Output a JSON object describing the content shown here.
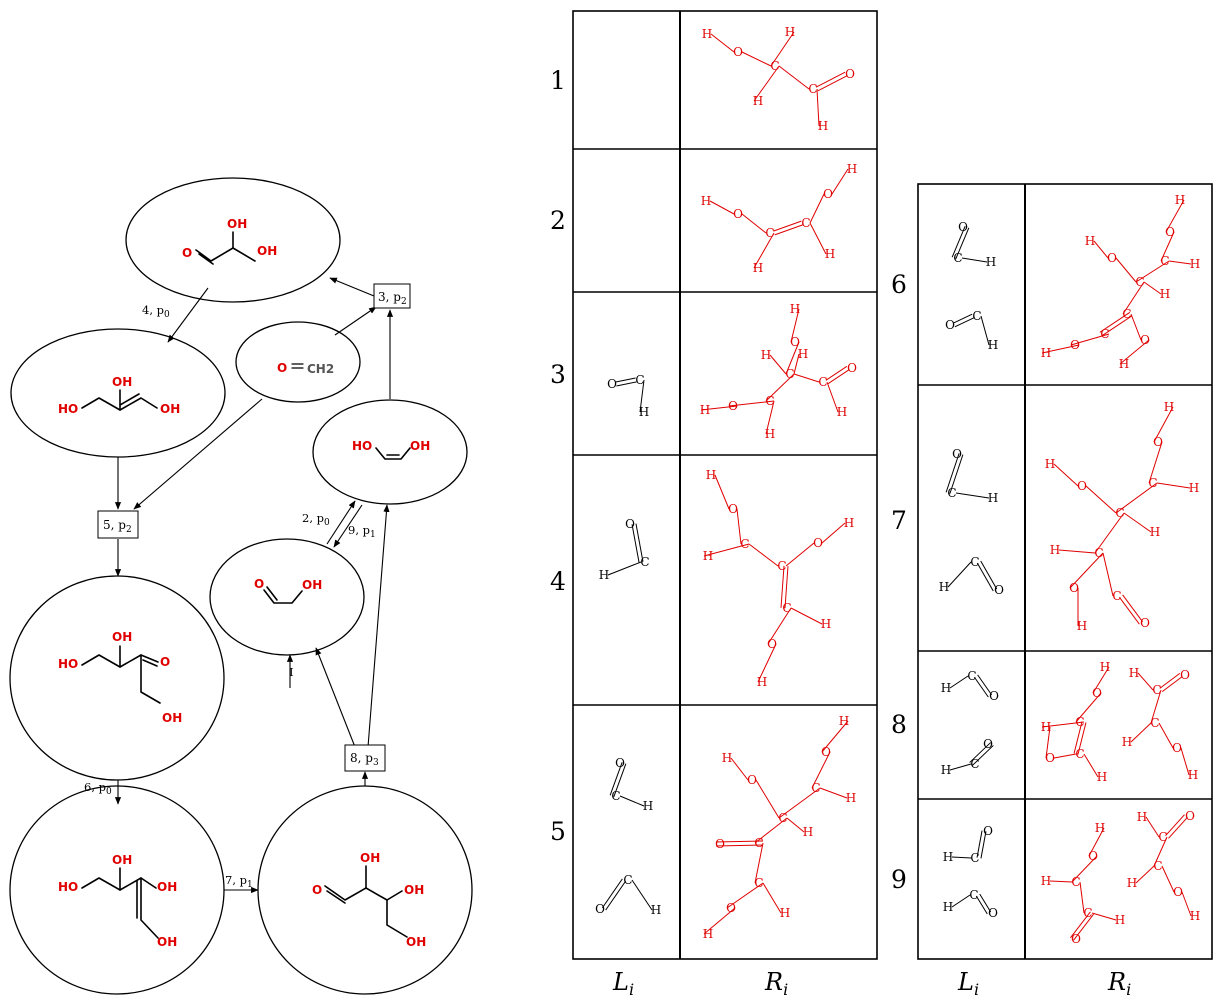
{
  "network": {
    "molecules": [
      {
        "id": "m_top",
        "labels": [
          "O",
          "OH",
          "OH"
        ]
      },
      {
        "id": "m_enol",
        "labels": [
          "OH",
          "HO",
          "OH"
        ]
      },
      {
        "id": "m_formaldehyde",
        "labels": [
          "O",
          "CH2"
        ]
      },
      {
        "id": "m_enediol",
        "labels": [
          "HO",
          "OH"
        ]
      },
      {
        "id": "m_glycolaldehyde",
        "labels": [
          "O",
          "OH"
        ]
      },
      {
        "id": "m_ketose",
        "labels": [
          "OH",
          "HO",
          "O",
          "OH"
        ]
      },
      {
        "id": "m_enediol4",
        "labels": [
          "OH",
          "HO",
          "OH",
          "OH"
        ]
      },
      {
        "id": "m_aldose",
        "labels": [
          "OH",
          "O",
          "OH",
          "OH"
        ]
      }
    ],
    "reaction_boxes": [
      {
        "num": "3",
        "p": "p",
        "sub": "2"
      },
      {
        "num": "5",
        "p": "p",
        "sub": "2"
      },
      {
        "num": "8",
        "p": "p",
        "sub": "3"
      }
    ],
    "edge_labels": [
      {
        "num": "4",
        "p": "p",
        "sub": "0"
      },
      {
        "num": "2",
        "p": "p",
        "sub": "0"
      },
      {
        "num": "9",
        "p": "p",
        "sub": "1"
      },
      {
        "num": "6",
        "p": "p",
        "sub": "0"
      },
      {
        "num": "7",
        "p": "p",
        "sub": "1"
      },
      {
        "text": "I"
      }
    ]
  },
  "table": {
    "rows_left": [
      "1",
      "2",
      "3",
      "4",
      "5"
    ],
    "rows_right": [
      "6",
      "7",
      "8",
      "9"
    ],
    "col_L": "L",
    "col_R": "R",
    "col_sub": "i"
  }
}
